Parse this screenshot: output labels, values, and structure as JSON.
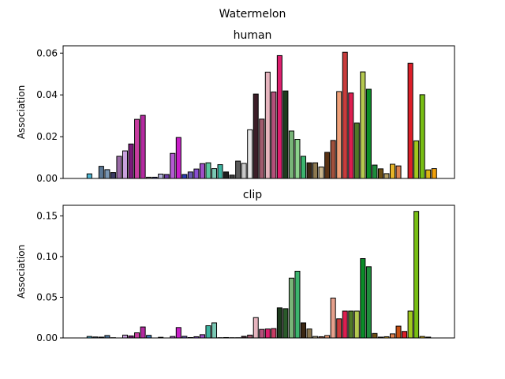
{
  "chart_data": [
    {
      "type": "bar",
      "suptitle": "Watermelon",
      "title": "human",
      "xlabel": "",
      "ylabel": "Association",
      "ylim": [
        0,
        0.0635
      ],
      "yticks": [
        0.0,
        0.02,
        0.04,
        0.06
      ],
      "ytick_labels": [
        "0.00",
        "0.02",
        "0.04",
        "0.06"
      ],
      "values": [
        0,
        0.0022,
        0,
        0.0058,
        0.0042,
        0.0028,
        0.0106,
        0.0132,
        0.0165,
        0.0283,
        0.0302,
        0.0006,
        0.0006,
        0.0021,
        0.0019,
        0.012,
        0.0196,
        0.0019,
        0.0031,
        0.0045,
        0.0071,
        0.0075,
        0.0047,
        0.0066,
        0.0031,
        0.0016,
        0.0083,
        0.0072,
        0.0233,
        0.0404,
        0.0284,
        0.0509,
        0.0414,
        0.0588,
        0.0419,
        0.0227,
        0.0187,
        0.0106,
        0.0075,
        0.0075,
        0.0055,
        0.0125,
        0.0182,
        0.0416,
        0.0604,
        0.0409,
        0.0265,
        0.051,
        0.0427,
        0.0064,
        0.0046,
        0.0023,
        0.0068,
        0.006,
        0,
        0.0551,
        0.018,
        0.0401,
        0.0041,
        0.0047
      ],
      "colors": [
        "#ffffff",
        "#4fb8d4",
        "#ffffff",
        "#5a7896",
        "#7896b4",
        "#3c3c64",
        "#9a6aa6",
        "#c8a0dc",
        "#7a1a7a",
        "#c83ca0",
        "#b42aa0",
        "#7a7a7a",
        "#3c3c96",
        "#b4b4dc",
        "#6a3ca6",
        "#b45ad2",
        "#c81ec8",
        "#2a3cb4",
        "#6a5ab4",
        "#8a50d2",
        "#a050c8",
        "#5ac8a0",
        "#7ac8b4",
        "#3cb4a0",
        "#1e1e1e",
        "#3c3c3c",
        "#5a5a5a",
        "#c8c8c8",
        "#e6e6e6",
        "#3c1e28",
        "#a05a6e",
        "#e6b4be",
        "#b4507a",
        "#dc1e6e",
        "#1e3c1e",
        "#78b478",
        "#8cd28c",
        "#3cb46e",
        "#3c2814",
        "#8c7850",
        "#c8b48c",
        "#5a3214",
        "#a0503c",
        "#f0a078",
        "#c83c3c",
        "#dc1e50",
        "#507828",
        "#b4c850",
        "#0a8c28",
        "#1e8c3c",
        "#6e5014",
        "#b4a064",
        "#e6b428",
        "#dc8250",
        "#c85014",
        "#dc1e28",
        "#a0c81e",
        "#78be14",
        "#dcb414",
        "#f0a00a"
      ]
    },
    {
      "type": "bar",
      "title": "clip",
      "xlabel": "",
      "ylabel": "Association",
      "ylim": [
        0,
        0.163
      ],
      "yticks": [
        0.0,
        0.05,
        0.1,
        0.15
      ],
      "ytick_labels": [
        "0.00",
        "0.05",
        "0.10",
        "0.15"
      ],
      "values": [
        0,
        0.0018,
        0.0012,
        0.001,
        0.003,
        0.0003,
        0,
        0.0035,
        0.0025,
        0.0063,
        0.0135,
        0.0032,
        0,
        0.0008,
        0,
        0.0018,
        0.0128,
        0.002,
        0.0005,
        0.0015,
        0.004,
        0.015,
        0.0185,
        0.0003,
        0.0005,
        0.0003,
        0.0003,
        0.002,
        0.0035,
        0.025,
        0.0105,
        0.011,
        0.0115,
        0.037,
        0.036,
        0.0735,
        0.082,
        0.0185,
        0.011,
        0.0018,
        0.0015,
        0.003,
        0.049,
        0.0235,
        0.033,
        0.033,
        0.033,
        0.0975,
        0.0875,
        0.0055,
        0.001,
        0.0015,
        0.005,
        0.0145,
        0.008,
        0.033,
        0.1555,
        0.0018,
        0.001,
        0
      ],
      "colors": [
        "#ffffff",
        "#4fb8d4",
        "#5a7896",
        "#7896b4",
        "#5078a0",
        "#3c3c64",
        "#ffffff",
        "#c8a0dc",
        "#7a1a7a",
        "#c83ca0",
        "#b42aa0",
        "#3c78b4",
        "#ffffff",
        "#3c3c96",
        "#ffffff",
        "#b45ad2",
        "#c81ec8",
        "#6a5ab4",
        "#2a3cb4",
        "#8a50d2",
        "#a050c8",
        "#3cb4a0",
        "#7ac8b4",
        "#3c3c3c",
        "#5a5a5a",
        "#c8c8c8",
        "#e6e6e6",
        "#3c1e28",
        "#a05a6e",
        "#e6b4be",
        "#b4507a",
        "#dc1e6e",
        "#c83c64",
        "#1e3c1e",
        "#2a5a2a",
        "#78b478",
        "#3cb46e",
        "#3c2814",
        "#8c7850",
        "#c8b48c",
        "#a0503c",
        "#f0a078",
        "#e6a08c",
        "#c83c3c",
        "#dc1e50",
        "#507828",
        "#b4c850",
        "#0a8c28",
        "#1e8c3c",
        "#6e5014",
        "#b4a064",
        "#e6b428",
        "#dc8250",
        "#c85014",
        "#dc1e28",
        "#a0c81e",
        "#78be14",
        "#dcb414",
        "#5a8c14",
        "#ffffff"
      ]
    }
  ]
}
